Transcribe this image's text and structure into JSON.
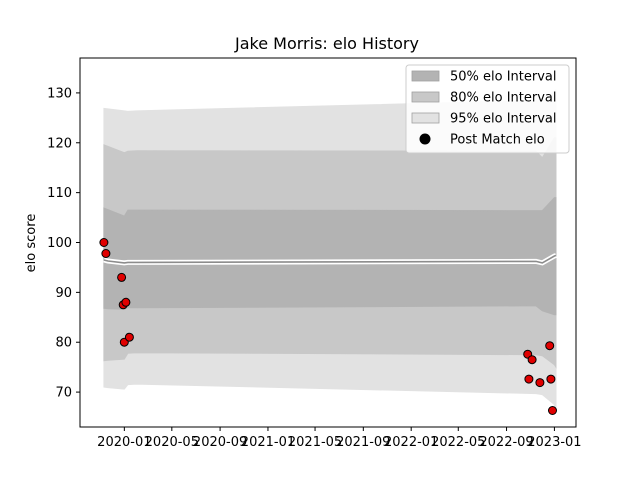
{
  "chart_data": {
    "type": "area",
    "title": "Jake Morris: elo History",
    "xlabel": "",
    "ylabel": "elo score",
    "xlim": [
      "2019-09-10",
      "2023-02-25"
    ],
    "ylim": [
      63,
      137
    ],
    "grid": false,
    "legend_position": "top-right",
    "x_ticks": [
      "2020-01",
      "2020-05",
      "2020-09",
      "2021-01",
      "2021-05",
      "2021-09",
      "2022-01",
      "2022-05",
      "2022-09",
      "2023-01"
    ],
    "y_ticks": [
      70,
      80,
      90,
      100,
      110,
      120,
      130
    ],
    "legend": [
      {
        "label": "50% elo Interval",
        "color": "#b3b3b3",
        "kind": "patch"
      },
      {
        "label": "80% elo Interval",
        "color": "#c8c8c8",
        "kind": "patch"
      },
      {
        "label": "95% elo Interval",
        "color": "#e2e2e2",
        "kind": "patch"
      },
      {
        "label": "Post Match elo",
        "color": "#000000",
        "kind": "marker"
      }
    ],
    "band_x": [
      "2019-11-10",
      "2019-11-20",
      "2020-01-01",
      "2020-01-10",
      "2020-02-01",
      "2022-11-15",
      "2022-12-01",
      "2023-01-01",
      "2023-01-05"
    ],
    "mean": [
      96.5,
      96.3,
      95.9,
      96.0,
      96.0,
      96.2,
      95.9,
      97.3,
      97.4
    ],
    "bands": [
      {
        "name": "95% elo Interval",
        "color": "#e2e2e2",
        "lower": [
          71.0,
          70.9,
          70.6,
          71.5,
          71.6,
          69.7,
          69.5,
          67.5,
          66.5
        ],
        "upper": [
          126.9,
          126.8,
          126.4,
          126.3,
          126.4,
          128.5,
          128.2,
          130.5,
          130.6
        ]
      },
      {
        "name": "80% elo Interval",
        "color": "#c8c8c8",
        "lower": [
          76.3,
          76.4,
          76.6,
          77.8,
          77.9,
          77.5,
          77.3,
          75.5,
          75.0
        ],
        "upper": [
          119.6,
          119.3,
          118.0,
          118.3,
          118.4,
          118.3,
          117.0,
          121.0,
          121.0
        ]
      },
      {
        "name": "50% elo Interval",
        "color": "#b3b3b3",
        "lower": [
          86.8,
          86.7,
          86.6,
          86.9,
          86.9,
          87.3,
          86.3,
          85.5,
          85.5
        ],
        "upper": [
          106.9,
          106.6,
          105.3,
          106.5,
          106.5,
          106.4,
          106.4,
          109.0,
          109.0
        ]
      }
    ],
    "points": [
      {
        "date": "2019-11-10",
        "elo": 100.0
      },
      {
        "date": "2019-11-15",
        "elo": 97.8
      },
      {
        "date": "2019-12-25",
        "elo": 93.0
      },
      {
        "date": "2019-12-29",
        "elo": 87.5
      },
      {
        "date": "2020-01-01",
        "elo": 80.0
      },
      {
        "date": "2020-01-05",
        "elo": 88.0
      },
      {
        "date": "2020-01-14",
        "elo": 81.0
      },
      {
        "date": "2022-10-25",
        "elo": 77.6
      },
      {
        "date": "2022-10-28",
        "elo": 72.6
      },
      {
        "date": "2022-11-05",
        "elo": 76.5
      },
      {
        "date": "2022-11-25",
        "elo": 71.9
      },
      {
        "date": "2022-12-20",
        "elo": 79.3
      },
      {
        "date": "2022-12-23",
        "elo": 72.6
      },
      {
        "date": "2022-12-27",
        "elo": 66.3
      }
    ],
    "point_color": "#e00000",
    "point_edge_color": "#000000",
    "mean_color": "#8c8c8c",
    "mean_outline_color": "#ffffff"
  }
}
